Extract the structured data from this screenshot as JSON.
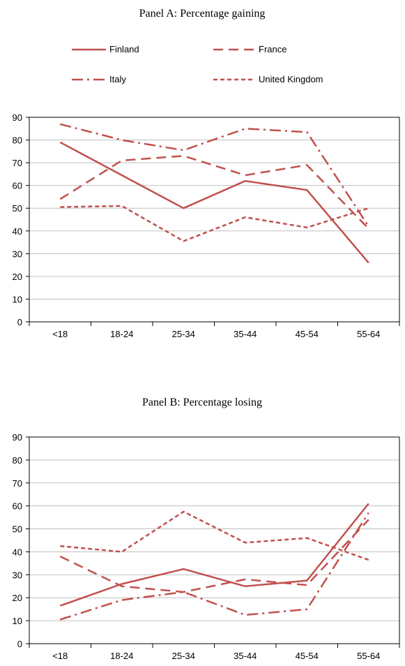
{
  "legend": [
    {
      "name": "Finland",
      "dash": "solid"
    },
    {
      "name": "France",
      "dash": "longdash"
    },
    {
      "name": "Italy",
      "dash": "dashdot"
    },
    {
      "name": "United Kingdom",
      "dash": "shortdash"
    }
  ],
  "colors": {
    "series": "#c0504d",
    "grid": "#bfbfbf"
  },
  "chart_data": [
    {
      "type": "line",
      "title": "Panel A: Percentage gaining",
      "categories": [
        "<18",
        "18-24",
        "25-34",
        "35-44",
        "45-54",
        "55-64"
      ],
      "ylim": [
        0,
        90
      ],
      "yticks": [
        0,
        10,
        20,
        30,
        40,
        50,
        60,
        70,
        80,
        90
      ],
      "grid": true,
      "legend_position": "top",
      "series": [
        {
          "name": "Finland",
          "values": [
            79,
            64.5,
            50,
            62,
            58,
            26
          ]
        },
        {
          "name": "France",
          "values": [
            54,
            71,
            73,
            64.5,
            69,
            41
          ]
        },
        {
          "name": "Italy",
          "values": [
            87,
            80,
            75.5,
            85,
            83.5,
            42
          ]
        },
        {
          "name": "United Kingdom",
          "values": [
            50.5,
            51,
            35.5,
            46,
            41.5,
            50
          ]
        }
      ]
    },
    {
      "type": "line",
      "title": "Panel B: Percentage losing",
      "categories": [
        "<18",
        "18-24",
        "25-34",
        "35-44",
        "45-54",
        "55-64"
      ],
      "ylim": [
        0,
        90
      ],
      "yticks": [
        0,
        10,
        20,
        30,
        40,
        50,
        60,
        70,
        80,
        90
      ],
      "grid": true,
      "series": [
        {
          "name": "Finland",
          "values": [
            16.5,
            26,
            32.5,
            25,
            27.5,
            61
          ]
        },
        {
          "name": "France",
          "values": [
            38,
            25,
            22.5,
            28,
            25.5,
            54
          ]
        },
        {
          "name": "Italy",
          "values": [
            10.5,
            19,
            22.5,
            12.5,
            15,
            57
          ]
        },
        {
          "name": "United Kingdom",
          "values": [
            42.5,
            40,
            57.5,
            44,
            46,
            36.5
          ]
        }
      ]
    }
  ]
}
